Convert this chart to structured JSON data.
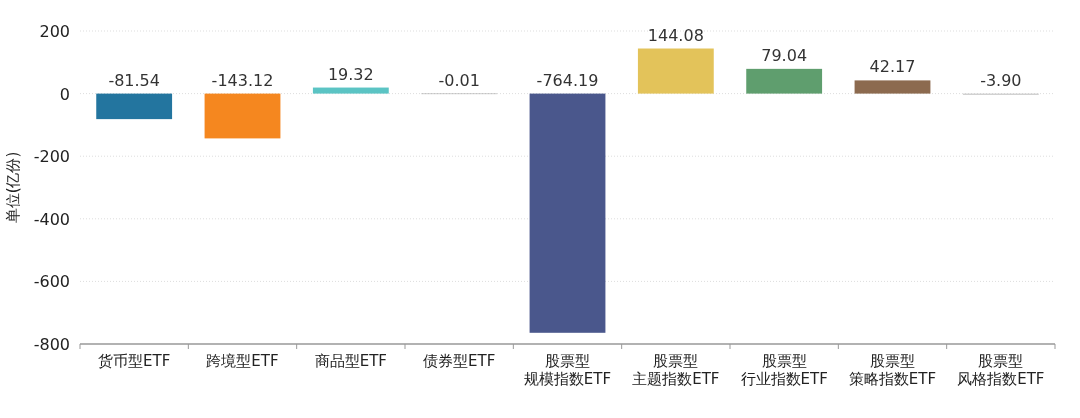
{
  "chart_data": {
    "type": "bar",
    "ylabel": "单位(亿份)",
    "categories": [
      "货币型ETF",
      "跨境型ETF",
      "商品型ETF",
      "债券型ETF",
      "股票型规模指数ETF",
      "股票型主题指数ETF",
      "股票型行业指数ETF",
      "股票型策略指数ETF",
      "股票型风格指数ETF"
    ],
    "values": [
      -81.54,
      -143.12,
      19.32,
      -0.01,
      -764.19,
      144.08,
      79.04,
      42.17,
      -3.9
    ],
    "value_labels": [
      "-81.54",
      "-143.12",
      "19.32",
      "-0.01",
      "-764.19",
      "144.08",
      "79.04",
      "42.17",
      "-3.90"
    ],
    "colors": [
      "#23759f",
      "#f5871f",
      "#5bc4c4",
      "#9a9a9a",
      "#4a578c",
      "#e3c35a",
      "#5f9e6e",
      "#8c6a4f",
      "#c8c8c8"
    ],
    "ylim": [
      -800,
      200
    ],
    "yticks": [
      200,
      0,
      -200,
      -400,
      -600,
      -800
    ],
    "grid": "y"
  }
}
